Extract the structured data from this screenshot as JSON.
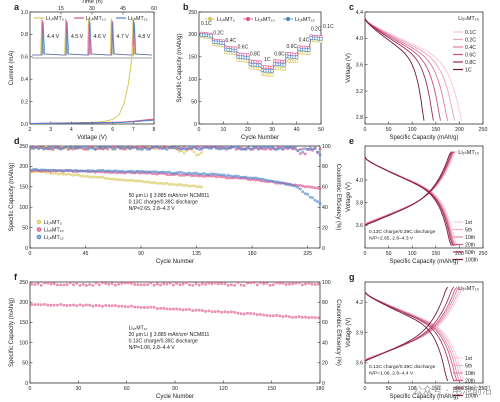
{
  "watermark": "公众号 · 电池前沿",
  "colors": {
    "LiMT5": "#d9c85a",
    "LiMT10": "#e0508a",
    "LiMT15": "#4d86c8",
    "rate_ramp": [
      "#f5c6d6",
      "#eaa2bd",
      "#dc7aa0",
      "#c44f7c",
      "#9b2b55",
      "#6e1436"
    ],
    "cycle_ramp": [
      "#f7cfdc",
      "#eeb0c6",
      "#e08aa8",
      "#cc5a82",
      "#a8345d",
      "#7a1a3e"
    ]
  },
  "chart_data": [
    {
      "panel": "a",
      "type": "line",
      "xlabel": "Voltage (V)",
      "ylabel": "Current (mA)",
      "x_top_label": "Time (h)",
      "x_top_ticks": [
        15,
        30,
        45,
        60
      ],
      "xlim": [
        2,
        8
      ],
      "ylim": [
        0,
        1.0
      ],
      "xticks": [
        2,
        3,
        4,
        5,
        6,
        7,
        8
      ],
      "yticks": [
        0.0,
        0.2,
        0.4,
        0.6,
        0.8,
        1.0
      ],
      "legend": [
        "Li₁ₕMT₅",
        "Li₁ₕMT₁₀",
        "Li₁ₕMT₁₅"
      ],
      "inset_labels": [
        "4.4 V",
        "4.5 V",
        "4.6 V",
        "4.7 V",
        "4.8 V"
      ],
      "series": [
        {
          "name": "Li1ₕMT5",
          "color_key": "LiMT5",
          "x": [
            2,
            4,
            5,
            5.5,
            6,
            6.3,
            6.55,
            6.75,
            6.9,
            7.0
          ],
          "y": [
            0.005,
            0.01,
            0.015,
            0.02,
            0.04,
            0.08,
            0.18,
            0.35,
            0.55,
            0.7
          ]
        },
        {
          "name": "Li1ₕMT10",
          "color_key": "LiMT10",
          "x": [
            2,
            4,
            5,
            6,
            6.5,
            7,
            7.5,
            8
          ],
          "y": [
            0.005,
            0.01,
            0.012,
            0.015,
            0.018,
            0.025,
            0.035,
            0.045
          ]
        },
        {
          "name": "Li1ₕMT15",
          "color_key": "LiMT15",
          "x": [
            2,
            4,
            5,
            6,
            6.5,
            7,
            7.5,
            8
          ],
          "y": [
            0.005,
            0.008,
            0.01,
            0.012,
            0.015,
            0.02,
            0.028,
            0.035
          ]
        }
      ]
    },
    {
      "panel": "b",
      "type": "scatter",
      "xlabel": "Cycle Number",
      "ylabel": "Specific Capacity (mAh/g)",
      "xlim": [
        0,
        50
      ],
      "ylim": [
        0,
        250
      ],
      "xticks": [
        0,
        10,
        20,
        30,
        40,
        50
      ],
      "yticks": [
        0,
        50,
        100,
        150,
        200,
        250
      ],
      "legend": [
        "Li₁ₕMT₅",
        "Li₁ₕMT₁₀",
        "Li₁ₕMT₁₅"
      ],
      "rate_labels": [
        "0.1C",
        "0.2C",
        "0.4C",
        "0.6C",
        "0.8C",
        "1C",
        "0.8C",
        "0.6C",
        "0.4C",
        "0.2C",
        "0.1C"
      ],
      "series": [
        {
          "name": "Li1ₕMT5",
          "color_key": "LiMT5",
          "x": [
            1,
            2,
            3,
            4,
            5,
            6,
            7,
            8,
            9,
            10,
            11,
            12,
            13,
            14,
            15,
            16,
            17,
            18,
            19,
            20,
            21,
            22,
            23,
            24,
            25,
            26,
            27,
            28,
            29,
            30,
            31,
            32,
            33,
            34,
            35,
            36,
            37,
            38,
            39,
            40,
            41,
            42,
            43,
            44,
            45,
            46,
            47,
            48,
            49,
            50
          ],
          "y": [
            196,
            195,
            195,
            194,
            194,
            178,
            177,
            176,
            176,
            175,
            160,
            159,
            159,
            158,
            158,
            143,
            142,
            142,
            141,
            141,
            126,
            125,
            124,
            124,
            123,
            112,
            111,
            110,
            110,
            109,
            125,
            124,
            124,
            123,
            123,
            142,
            141,
            141,
            140,
            140,
            160,
            159,
            159,
            158,
            158,
            188,
            187,
            186,
            186,
            185
          ]
        },
        {
          "name": "Li1ₕMT10",
          "color_key": "LiMT10",
          "x": [
            1,
            2,
            3,
            4,
            5,
            6,
            7,
            8,
            9,
            10,
            11,
            12,
            13,
            14,
            15,
            16,
            17,
            18,
            19,
            20,
            21,
            22,
            23,
            24,
            25,
            26,
            27,
            28,
            29,
            30,
            31,
            32,
            33,
            34,
            35,
            36,
            37,
            38,
            39,
            40,
            41,
            42,
            43,
            44,
            45,
            46,
            47,
            48,
            49,
            50
          ],
          "y": [
            202,
            201,
            201,
            200,
            200,
            187,
            186,
            186,
            185,
            185,
            171,
            170,
            170,
            169,
            169,
            156,
            155,
            155,
            154,
            154,
            140,
            139,
            139,
            138,
            138,
            128,
            127,
            127,
            126,
            126,
            141,
            140,
            140,
            139,
            139,
            157,
            156,
            156,
            155,
            155,
            172,
            171,
            171,
            170,
            170,
            196,
            195,
            195,
            194,
            194
          ]
        },
        {
          "name": "Li1ₕMT15",
          "color_key": "LiMT15",
          "x": [
            1,
            2,
            3,
            4,
            5,
            6,
            7,
            8,
            9,
            10,
            11,
            12,
            13,
            14,
            15,
            16,
            17,
            18,
            19,
            20,
            21,
            22,
            23,
            24,
            25,
            26,
            27,
            28,
            29,
            30,
            31,
            32,
            33,
            34,
            35,
            36,
            37,
            38,
            39,
            40,
            41,
            42,
            43,
            44,
            45,
            46,
            47,
            48,
            49,
            50
          ],
          "y": [
            199,
            198,
            198,
            197,
            197,
            183,
            182,
            182,
            181,
            181,
            166,
            165,
            165,
            164,
            164,
            150,
            149,
            149,
            148,
            148,
            133,
            132,
            132,
            131,
            131,
            120,
            119,
            119,
            118,
            118,
            134,
            133,
            133,
            132,
            132,
            151,
            150,
            150,
            149,
            149,
            167,
            166,
            166,
            165,
            165,
            192,
            191,
            191,
            190,
            190
          ]
        }
      ]
    },
    {
      "panel": "c",
      "type": "line",
      "xlabel": "Specific Capacity (mAh/g)",
      "ylabel": "Voltage (V)",
      "xlim": [
        0,
        250
      ],
      "ylim": [
        2.7,
        4.4
      ],
      "xticks": [
        0,
        50,
        100,
        150,
        200,
        250
      ],
      "yticks": [
        2.8,
        3.2,
        3.6,
        4.0,
        4.4
      ],
      "title": "Li₁ₕMT₁₀",
      "legend": [
        "0.1C",
        "0.2C",
        "0.4C",
        "0.6C",
        "0.8C",
        "1C"
      ],
      "series": [
        {
          "name": "0.1C",
          "end_capacity": 205
        },
        {
          "name": "0.2C",
          "end_capacity": 190
        },
        {
          "name": "0.4C",
          "end_capacity": 175
        },
        {
          "name": "0.6C",
          "end_capacity": 160
        },
        {
          "name": "0.8C",
          "end_capacity": 145
        },
        {
          "name": "1C",
          "end_capacity": 125
        }
      ]
    },
    {
      "panel": "d",
      "type": "scatter",
      "xlabel": "Cycle Number",
      "ylabel": "Specific Capacity (mAh/g)",
      "y2label": "Coulombic Efficiency (%)",
      "xlim": [
        0,
        235
      ],
      "ylim": [
        0,
        250
      ],
      "y2lim": [
        0,
        100
      ],
      "xticks": [
        0,
        45,
        90,
        135,
        180,
        225
      ],
      "yticks": [
        0,
        50,
        100,
        150,
        200,
        250
      ],
      "y2ticks": [
        0,
        20,
        40,
        60,
        80,
        100
      ],
      "legend": [
        "Li₁ₕMT₅",
        "Li₁ₕMT₁₀",
        "Li₁ₕMT₁₅"
      ],
      "annotation": [
        "50 μm Li || 3.885 mAh/cm² NCM811",
        "0.13C charge/0.39C discharge",
        "N/P=2.65, 2.8–4.3 V"
      ],
      "series": [
        {
          "name": "Li1ₕMT5 capacity",
          "color_key": "LiMT5",
          "x": [
            1,
            20,
            40,
            60,
            80,
            100,
            120,
            140
          ],
          "y": [
            188,
            183,
            178,
            172,
            166,
            160,
            155,
            150
          ]
        },
        {
          "name": "Li1ₕMT10 capacity",
          "color_key": "LiMT10",
          "x": [
            1,
            20,
            40,
            60,
            80,
            100,
            120,
            140,
            160,
            180,
            200,
            220,
            235
          ],
          "y": [
            190,
            189,
            188,
            186,
            185,
            183,
            180,
            177,
            173,
            168,
            160,
            152,
            145
          ]
        },
        {
          "name": "Li1ₕMT15 capacity",
          "color_key": "LiMT15",
          "x": [
            1,
            20,
            40,
            60,
            80,
            100,
            120,
            140,
            160,
            180,
            200,
            215,
            225,
            235
          ],
          "y": [
            192,
            191,
            190,
            189,
            188,
            186,
            184,
            182,
            178,
            172,
            163,
            152,
            130,
            110
          ]
        },
        {
          "name": "Coulombic efficiency",
          "axis": "y2",
          "value": 99.5
        }
      ]
    },
    {
      "panel": "e",
      "type": "line",
      "xlabel": "Specific Capacity (mAh/g)",
      "ylabel": "Voltage (V)",
      "xlim": [
        0,
        250
      ],
      "ylim": [
        3.4,
        4.3
      ],
      "xticks": [
        0,
        50,
        100,
        150,
        200,
        250
      ],
      "yticks": [
        3.6,
        3.8,
        4.0
      ],
      "title": "Li₁ₕMT₁₀",
      "annotation": [
        "0.13C charge/0.39C discharge",
        "N/P=2.65, 2.8–4.3 V"
      ],
      "legend": [
        "1st",
        "5th",
        "10th",
        "20th",
        "50th",
        "100th"
      ],
      "series": [
        {
          "name": "1st",
          "end_capacity": 195
        },
        {
          "name": "5th",
          "end_capacity": 192
        },
        {
          "name": "10th",
          "end_capacity": 190
        },
        {
          "name": "20th",
          "end_capacity": 188
        },
        {
          "name": "50th",
          "end_capacity": 186
        },
        {
          "name": "100th",
          "end_capacity": 183
        }
      ]
    },
    {
      "panel": "f",
      "type": "scatter",
      "xlabel": "Cycle Number",
      "ylabel": "Specific Capacity (mAh/g)",
      "y2label": "Coulombic Efficiency (%)",
      "xlim": [
        0,
        180
      ],
      "ylim": [
        0,
        250
      ],
      "y2lim": [
        0,
        100
      ],
      "xticks": [
        0,
        30,
        60,
        90,
        120,
        150,
        180
      ],
      "yticks": [
        0,
        50,
        100,
        150,
        200,
        250
      ],
      "y2ticks": [
        0,
        20,
        40,
        60,
        80,
        100
      ],
      "annotation": [
        "Li₁ₕMT₁₀",
        "20 μm Li || 3.885 mAh/cm² NCM811",
        "0.13C charge/0.39C discharge",
        "N/P=1.06, 2.8–4.4 V"
      ],
      "series": [
        {
          "name": "Li1ₕMT10 capacity",
          "color_key": "LiMT10",
          "x": [
            1,
            30,
            60,
            90,
            120,
            150,
            180
          ],
          "y": [
            195,
            192,
            190,
            183,
            176,
            167,
            160
          ]
        },
        {
          "name": "Coulombic efficiency",
          "axis": "y2",
          "value": 99.5
        }
      ]
    },
    {
      "panel": "g",
      "type": "line",
      "xlabel": "Specific Capacity (mAh/g)",
      "ylabel": "Voltage (V)",
      "xlim": [
        0,
        250
      ],
      "ylim": [
        3.4,
        4.4
      ],
      "xticks": [
        0,
        50,
        100,
        150,
        200,
        250
      ],
      "yticks": [
        3.6,
        3.9,
        4.2
      ],
      "title": "Li₁ₕMT₁₀",
      "annotation": [
        "0.13C charge/0.39C discharge",
        "N/P=1.06, 2.8–4.4 V"
      ],
      "legend": [
        "1st",
        "5th",
        "10th",
        "20th",
        "50th",
        "100th"
      ],
      "series": [
        {
          "name": "1st",
          "end_capacity": 210
        },
        {
          "name": "5th",
          "end_capacity": 205
        },
        {
          "name": "10th",
          "end_capacity": 200
        },
        {
          "name": "20th",
          "end_capacity": 195
        },
        {
          "name": "50th",
          "end_capacity": 188
        },
        {
          "name": "100th",
          "end_capacity": 175
        }
      ]
    }
  ]
}
